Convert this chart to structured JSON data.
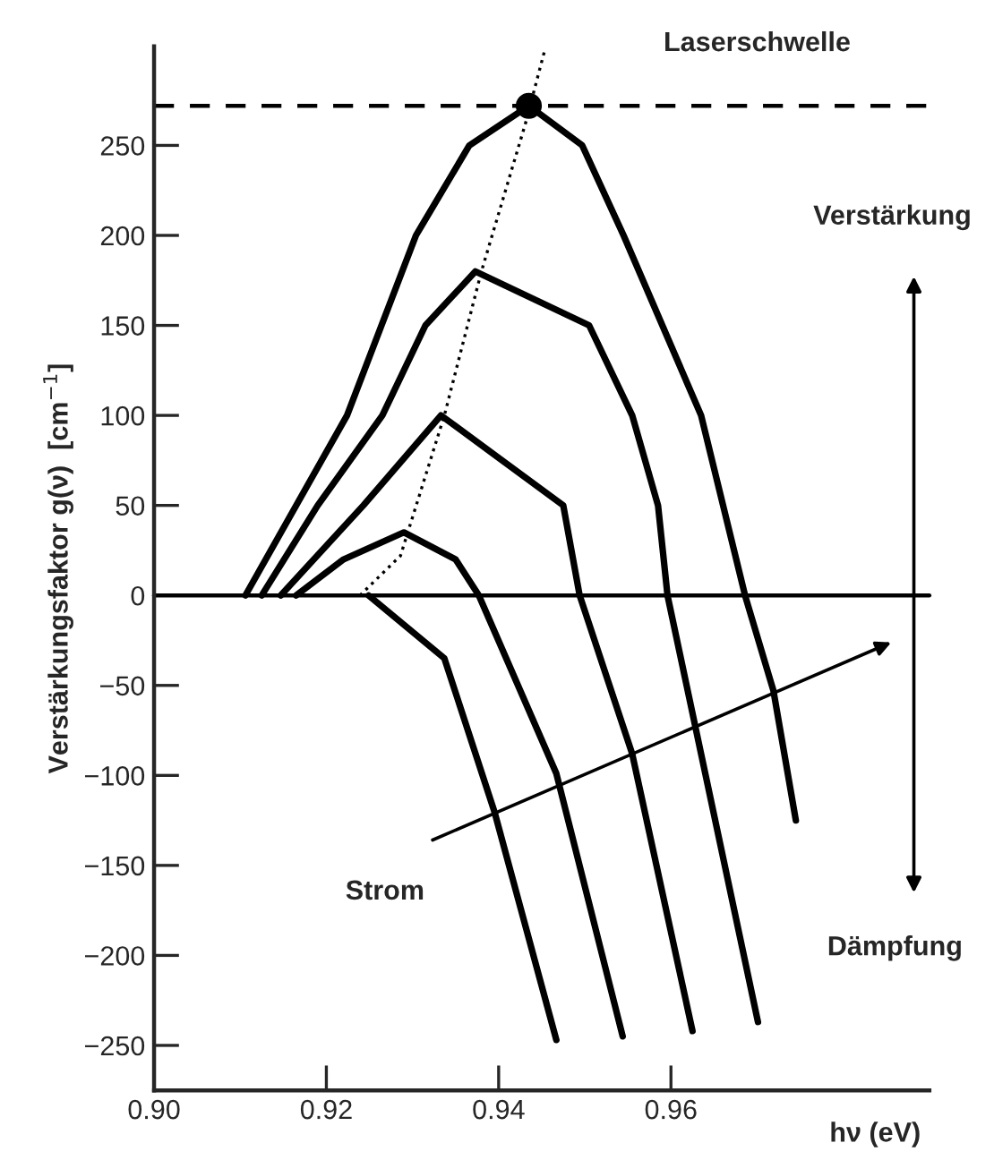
{
  "chart_data": {
    "type": "line",
    "xlabel": "hν (eV)",
    "ylabel": "Verstärkungsfaktor g(ν)  [cm$^{−1}$]",
    "xlim": [
      0.9,
      0.99
    ],
    "ylim": [
      -275,
      305
    ],
    "xticks": [
      {
        "value": 0.9,
        "label": "0.90"
      },
      {
        "value": 0.92,
        "label": "0.92"
      },
      {
        "value": 0.94,
        "label": "0.94"
      },
      {
        "value": 0.96,
        "label": "0.96"
      }
    ],
    "yticks": [
      {
        "value": -250,
        "label": "−250"
      },
      {
        "value": -200,
        "label": "−200"
      },
      {
        "value": -150,
        "label": "−150"
      },
      {
        "value": -100,
        "label": "−100"
      },
      {
        "value": -50,
        "label": "−50"
      },
      0,
      50,
      100,
      150,
      200,
      250
    ],
    "grid": false,
    "legend": false,
    "series": [
      {
        "color": "#000000",
        "x": [
          0.9106,
          0.9224,
          0.9304,
          0.9366,
          0.9435,
          0.9497,
          0.9545,
          0.9635,
          0.9686,
          0.9719,
          0.9745
        ],
        "values": [
          0,
          100,
          200,
          250,
          272,
          250,
          200,
          100,
          0,
          -53,
          -125
        ]
      },
      {
        "color": "#000000",
        "x": [
          0.9125,
          0.919,
          0.9265,
          0.9315,
          0.9373,
          0.9505,
          0.9555,
          0.9585,
          0.9596,
          0.9635,
          0.9701
        ],
        "values": [
          0,
          50,
          100,
          150,
          180,
          150,
          100,
          50,
          0,
          -88,
          -237
        ]
      },
      {
        "color": "#000000",
        "x": [
          0.9147,
          0.9243,
          0.9333,
          0.9475,
          0.9494,
          0.9555,
          0.9625
        ],
        "values": [
          0,
          50,
          100,
          50,
          0,
          -88,
          -242
        ]
      },
      {
        "color": "#000000",
        "x": [
          0.9165,
          0.922,
          0.929,
          0.935,
          0.9377,
          0.9467,
          0.9544
        ],
        "values": [
          0,
          20,
          35,
          20,
          0,
          -99,
          -245
        ]
      },
      {
        "color": "#000000",
        "x": [
          0.9249,
          0.9337,
          0.9395,
          0.9467
        ],
        "values": [
          0,
          -35,
          -120,
          -247
        ]
      },
      {
        "color": "#000000",
        "line_style": "dotted",
        "x": [
          0.9239,
          0.9286,
          0.9337,
          0.938,
          0.9431,
          0.9453
        ],
        "values": [
          0,
          22,
          100,
          180,
          262,
          302
        ]
      },
      {
        "type": "scatter",
        "color": "#000000",
        "marker": "circle",
        "x": [
          0.9435
        ],
        "values": [
          272
        ]
      }
    ],
    "ref_lines": [
      {
        "axis": "y",
        "value": 272,
        "label": "Laserschwelle",
        "line_style": "dashed",
        "color": "#000000"
      },
      {
        "axis": "y",
        "value": 0,
        "color": "#000000",
        "line_style": "solid"
      }
    ],
    "annotations": [
      "Verstärkung",
      "Dämpfung",
      "Strom"
    ]
  }
}
